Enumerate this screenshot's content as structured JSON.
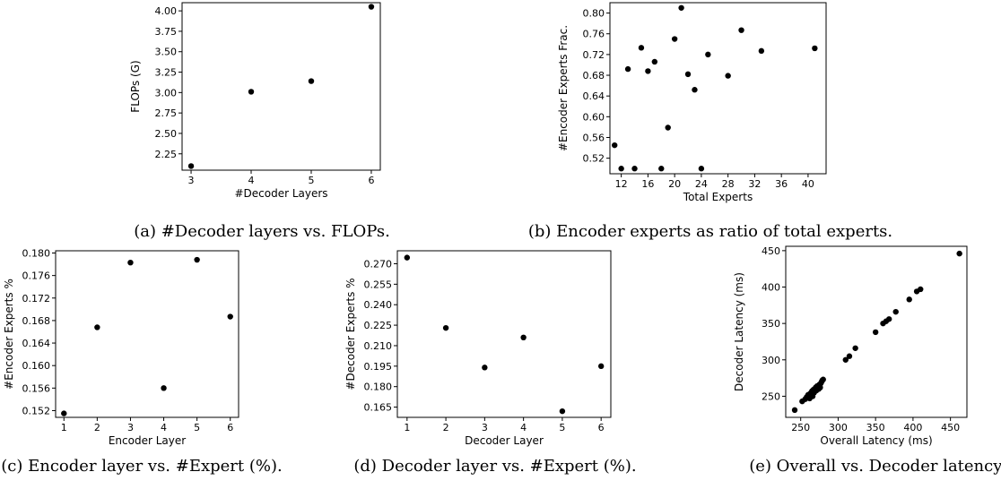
{
  "chart_data": [
    {
      "id": "a",
      "type": "scatter",
      "xlabel": "#Decoder Layers",
      "ylabel": "FLOPs (G)",
      "caption": "(a) #Decoder layers vs. FLOPs.",
      "xlim": [
        2.85,
        6.15
      ],
      "ylim": [
        2.05,
        4.1
      ],
      "xticks": [
        3,
        4,
        5,
        6
      ],
      "yticks": [
        2.25,
        2.5,
        2.75,
        3.0,
        3.25,
        3.5,
        3.75,
        4.0
      ],
      "ytick_labels": [
        "2.25",
        "2.50",
        "2.75",
        "3.00",
        "3.25",
        "3.50",
        "3.75",
        "4.00"
      ],
      "xtick_labels": [
        "3",
        "4",
        "5",
        "6"
      ],
      "points": [
        [
          3,
          2.1
        ],
        [
          4,
          3.01
        ],
        [
          5,
          3.14
        ],
        [
          6,
          4.05
        ]
      ]
    },
    {
      "id": "b",
      "type": "scatter",
      "xlabel": "Total Experts",
      "ylabel": "#Encoder Experts Frac.",
      "caption": "(b) Encoder experts as ratio of total experts.",
      "xlim": [
        10.3,
        42.7
      ],
      "ylim": [
        0.49,
        0.82
      ],
      "xticks": [
        12,
        16,
        20,
        24,
        28,
        32,
        36,
        40
      ],
      "xtick_labels": [
        "12",
        "16",
        "20",
        "24",
        "28",
        "32",
        "36",
        "40"
      ],
      "yticks": [
        0.52,
        0.56,
        0.6,
        0.64,
        0.68,
        0.72,
        0.76,
        0.8
      ],
      "ytick_labels": [
        "0.52",
        "0.56",
        "0.60",
        "0.64",
        "0.68",
        "0.72",
        "0.76",
        "0.80"
      ],
      "points": [
        [
          11,
          0.545
        ],
        [
          12,
          0.5
        ],
        [
          13,
          0.692
        ],
        [
          14,
          0.5
        ],
        [
          15,
          0.733
        ],
        [
          16,
          0.688
        ],
        [
          17,
          0.706
        ],
        [
          18,
          0.5
        ],
        [
          19,
          0.579
        ],
        [
          20,
          0.75
        ],
        [
          21,
          0.81
        ],
        [
          22,
          0.682
        ],
        [
          23,
          0.652
        ],
        [
          24,
          0.5
        ],
        [
          25,
          0.72
        ],
        [
          28,
          0.679
        ],
        [
          30,
          0.767
        ],
        [
          33,
          0.727
        ],
        [
          41,
          0.732
        ]
      ]
    },
    {
      "id": "c",
      "type": "scatter",
      "xlabel": "Encoder Layer",
      "ylabel": "#Encoder Experts %",
      "caption": "(c) Encoder layer vs. #Expert (%).",
      "xlim": [
        0.75,
        6.25
      ],
      "ylim": [
        0.1508,
        0.1804
      ],
      "xticks": [
        1,
        2,
        3,
        4,
        5,
        6
      ],
      "xtick_labels": [
        "1",
        "2",
        "3",
        "4",
        "5",
        "6"
      ],
      "yticks": [
        0.152,
        0.156,
        0.16,
        0.164,
        0.168,
        0.172,
        0.176,
        0.18
      ],
      "ytick_labels": [
        "0.152",
        "0.156",
        "0.160",
        "0.164",
        "0.168",
        "0.172",
        "0.176",
        "0.180"
      ],
      "points": [
        [
          1,
          0.1515
        ],
        [
          2,
          0.1668
        ],
        [
          3,
          0.1783
        ],
        [
          4,
          0.156
        ],
        [
          5,
          0.1788
        ],
        [
          6,
          0.1687
        ]
      ]
    },
    {
      "id": "d",
      "type": "scatter",
      "xlabel": "Decoder Layer",
      "ylabel": "#Decoder Experts %",
      "caption": "(d) Decoder layer vs. #Expert (%).",
      "xlim": [
        0.75,
        6.25
      ],
      "ylim": [
        0.1575,
        0.2795
      ],
      "xticks": [
        1,
        2,
        3,
        4,
        5,
        6
      ],
      "xtick_labels": [
        "1",
        "2",
        "3",
        "4",
        "5",
        "6"
      ],
      "yticks": [
        0.165,
        0.18,
        0.195,
        0.21,
        0.225,
        0.24,
        0.255,
        0.27
      ],
      "ytick_labels": [
        "0.165",
        "0.180",
        "0.195",
        "0.210",
        "0.225",
        "0.240",
        "0.255",
        "0.270"
      ],
      "points": [
        [
          1,
          0.2745
        ],
        [
          2,
          0.223
        ],
        [
          3,
          0.194
        ],
        [
          4,
          0.216
        ],
        [
          5,
          0.162
        ],
        [
          6,
          0.195
        ]
      ]
    },
    {
      "id": "e",
      "type": "scatter",
      "xlabel": "Overall Latency (ms)",
      "ylabel": "Decoder Latency (ms)",
      "caption": "(e) Overall vs. Decoder latency.",
      "xlim": [
        230,
        472
      ],
      "ylim": [
        221,
        456
      ],
      "xticks": [
        250,
        300,
        350,
        400,
        450
      ],
      "xtick_labels": [
        "250",
        "300",
        "350",
        "400",
        "450"
      ],
      "yticks": [
        250,
        300,
        350,
        400,
        450
      ],
      "ytick_labels": [
        "250",
        "300",
        "350",
        "400",
        "450"
      ],
      "points": [
        [
          242,
          231
        ],
        [
          252,
          243
        ],
        [
          256,
          246
        ],
        [
          258,
          249
        ],
        [
          260,
          252
        ],
        [
          262,
          247
        ],
        [
          263,
          254
        ],
        [
          265,
          257
        ],
        [
          266,
          250
        ],
        [
          267,
          259
        ],
        [
          268,
          255
        ],
        [
          270,
          262
        ],
        [
          271,
          258
        ],
        [
          272,
          264
        ],
        [
          274,
          260
        ],
        [
          275,
          266
        ],
        [
          276,
          262
        ],
        [
          277,
          268
        ],
        [
          278,
          270
        ],
        [
          279,
          272
        ],
        [
          280,
          273
        ],
        [
          310,
          300
        ],
        [
          315,
          305
        ],
        [
          323,
          316
        ],
        [
          350,
          338
        ],
        [
          360,
          350
        ],
        [
          364,
          353
        ],
        [
          368,
          356
        ],
        [
          377,
          366
        ],
        [
          395,
          383
        ],
        [
          405,
          394
        ],
        [
          410,
          397
        ],
        [
          462,
          446
        ]
      ]
    }
  ]
}
